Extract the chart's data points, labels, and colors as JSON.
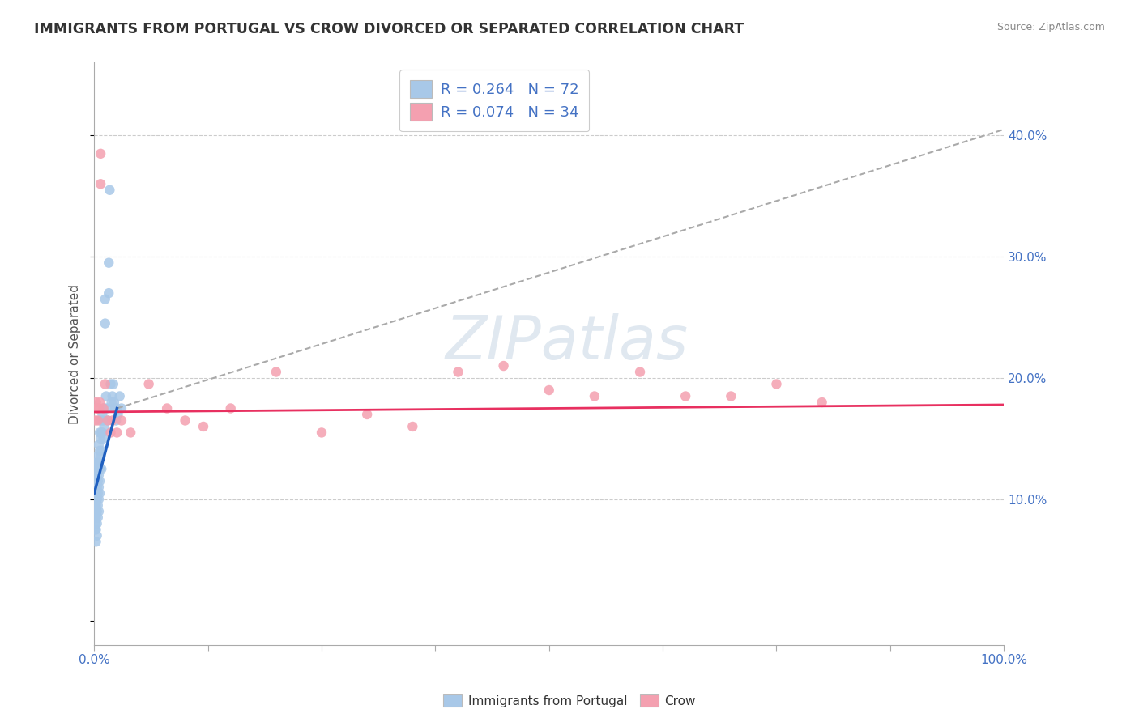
{
  "title": "IMMIGRANTS FROM PORTUGAL VS CROW DIVORCED OR SEPARATED CORRELATION CHART",
  "source": "Source: ZipAtlas.com",
  "ylabel": "Divorced or Separated",
  "xlim": [
    0,
    1.0
  ],
  "ylim": [
    -0.02,
    0.46
  ],
  "legend_r1": "R = 0.264   N = 72",
  "legend_r2": "R = 0.074   N = 34",
  "blue_color": "#a8c8e8",
  "pink_color": "#f4a0b0",
  "blue_line_color": "#2060c0",
  "pink_line_color": "#e83060",
  "gray_dash_color": "#aaaaaa",
  "watermark": "ZIPatlas",
  "blue_scatter": [
    [
      0.001,
      0.13
    ],
    [
      0.001,
      0.12
    ],
    [
      0.001,
      0.11
    ],
    [
      0.001,
      0.105
    ],
    [
      0.001,
      0.1
    ],
    [
      0.001,
      0.095
    ],
    [
      0.001,
      0.09
    ],
    [
      0.001,
      0.085
    ],
    [
      0.001,
      0.08
    ],
    [
      0.001,
      0.075
    ],
    [
      0.002,
      0.135
    ],
    [
      0.002,
      0.125
    ],
    [
      0.002,
      0.115
    ],
    [
      0.002,
      0.105
    ],
    [
      0.002,
      0.095
    ],
    [
      0.002,
      0.085
    ],
    [
      0.002,
      0.075
    ],
    [
      0.002,
      0.065
    ],
    [
      0.003,
      0.13
    ],
    [
      0.003,
      0.12
    ],
    [
      0.003,
      0.11
    ],
    [
      0.003,
      0.1
    ],
    [
      0.003,
      0.09
    ],
    [
      0.003,
      0.08
    ],
    [
      0.003,
      0.07
    ],
    [
      0.004,
      0.125
    ],
    [
      0.004,
      0.115
    ],
    [
      0.004,
      0.105
    ],
    [
      0.004,
      0.095
    ],
    [
      0.004,
      0.085
    ],
    [
      0.005,
      0.145
    ],
    [
      0.005,
      0.13
    ],
    [
      0.005,
      0.12
    ],
    [
      0.005,
      0.11
    ],
    [
      0.005,
      0.1
    ],
    [
      0.005,
      0.09
    ],
    [
      0.006,
      0.155
    ],
    [
      0.006,
      0.14
    ],
    [
      0.006,
      0.125
    ],
    [
      0.006,
      0.115
    ],
    [
      0.006,
      0.105
    ],
    [
      0.007,
      0.165
    ],
    [
      0.007,
      0.15
    ],
    [
      0.007,
      0.135
    ],
    [
      0.008,
      0.155
    ],
    [
      0.008,
      0.14
    ],
    [
      0.008,
      0.125
    ],
    [
      0.009,
      0.17
    ],
    [
      0.009,
      0.155
    ],
    [
      0.01,
      0.165
    ],
    [
      0.01,
      0.15
    ],
    [
      0.011,
      0.175
    ],
    [
      0.011,
      0.16
    ],
    [
      0.012,
      0.265
    ],
    [
      0.012,
      0.245
    ],
    [
      0.013,
      0.185
    ],
    [
      0.014,
      0.175
    ],
    [
      0.015,
      0.165
    ],
    [
      0.016,
      0.295
    ],
    [
      0.016,
      0.27
    ],
    [
      0.017,
      0.355
    ],
    [
      0.018,
      0.195
    ],
    [
      0.019,
      0.18
    ],
    [
      0.02,
      0.185
    ],
    [
      0.021,
      0.195
    ],
    [
      0.022,
      0.18
    ],
    [
      0.023,
      0.175
    ],
    [
      0.024,
      0.165
    ],
    [
      0.025,
      0.175
    ],
    [
      0.026,
      0.17
    ],
    [
      0.028,
      0.185
    ],
    [
      0.03,
      0.175
    ]
  ],
  "pink_scatter": [
    [
      0.001,
      0.165
    ],
    [
      0.002,
      0.18
    ],
    [
      0.003,
      0.175
    ],
    [
      0.004,
      0.165
    ],
    [
      0.005,
      0.175
    ],
    [
      0.006,
      0.18
    ],
    [
      0.007,
      0.36
    ],
    [
      0.007,
      0.385
    ],
    [
      0.01,
      0.175
    ],
    [
      0.012,
      0.195
    ],
    [
      0.015,
      0.165
    ],
    [
      0.018,
      0.155
    ],
    [
      0.02,
      0.165
    ],
    [
      0.025,
      0.155
    ],
    [
      0.03,
      0.165
    ],
    [
      0.04,
      0.155
    ],
    [
      0.06,
      0.195
    ],
    [
      0.08,
      0.175
    ],
    [
      0.1,
      0.165
    ],
    [
      0.12,
      0.16
    ],
    [
      0.15,
      0.175
    ],
    [
      0.2,
      0.205
    ],
    [
      0.25,
      0.155
    ],
    [
      0.3,
      0.17
    ],
    [
      0.35,
      0.16
    ],
    [
      0.4,
      0.205
    ],
    [
      0.45,
      0.21
    ],
    [
      0.5,
      0.19
    ],
    [
      0.55,
      0.185
    ],
    [
      0.6,
      0.205
    ],
    [
      0.65,
      0.185
    ],
    [
      0.7,
      0.185
    ],
    [
      0.75,
      0.195
    ],
    [
      0.8,
      0.18
    ]
  ],
  "blue_solid_line": [
    [
      0.0,
      0.105
    ],
    [
      0.025,
      0.175
    ]
  ],
  "blue_dash_line": [
    [
      0.025,
      0.175
    ],
    [
      1.0,
      0.405
    ]
  ],
  "pink_trendline": [
    [
      0.0,
      0.172
    ],
    [
      1.0,
      0.178
    ]
  ]
}
